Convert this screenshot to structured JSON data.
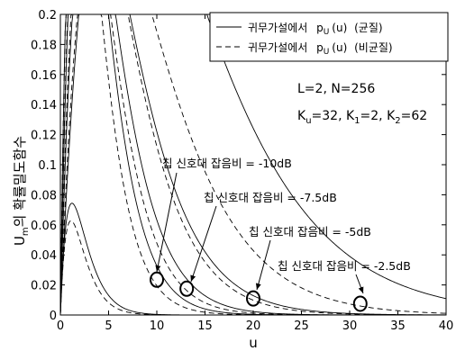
{
  "chart_data": {
    "type": "line",
    "xlabel": "u",
    "ylabel": "U_m의 확률밀도함수",
    "ylabel_parts": {
      "base": "U",
      "sub": "m",
      "rest": "의 확률밀도함수"
    },
    "xlim": [
      0,
      40
    ],
    "ylim": [
      0,
      0.2
    ],
    "x_ticks": [
      "0",
      "5",
      "10",
      "15",
      "20",
      "25",
      "30",
      "35",
      "40"
    ],
    "y_ticks": [
      "0",
      "0.02",
      "0.04",
      "0.06",
      "0.08",
      "0.1",
      "0.12",
      "0.14",
      "0.16",
      "0.18",
      "0.2"
    ],
    "grid": false,
    "legend": {
      "position": "top-right",
      "entries": [
        {
          "prefix": "귀무가설에서",
          "sym": "p",
          "sub": "U",
          "mid": "(u)",
          "suffix": "(균질)",
          "style": "solid"
        },
        {
          "prefix": "귀무가설에서",
          "sym": "p",
          "sub": "U",
          "mid": "(u)",
          "suffix": "(비균질)",
          "style": "dashed"
        }
      ]
    },
    "params": {
      "line1": "L=2, N=256",
      "line2": [
        {
          "t": "K",
          "s": "u"
        },
        {
          "t": "=32, K",
          "s": "1"
        },
        {
          "t": "=2, K",
          "s": "2"
        },
        {
          "t": "=62",
          "s": ""
        }
      ]
    },
    "annotations": [
      {
        "text": "칩 신호대 잡음비 = -10dB",
        "tx": 10.0,
        "ty": 0.0235
      },
      {
        "text": "칩 신호대 잡음비 = -7.5dB",
        "tx": 13.1,
        "ty": 0.0175
      },
      {
        "text": "칩 신호대 잡음비 = -5dB",
        "tx": 20.0,
        "ty": 0.011
      },
      {
        "text": "칩 신호대 잡음비 = -2.5dB",
        "tx": 31.1,
        "ty": 0.0075
      }
    ],
    "series": [
      {
        "style": "solid",
        "peak_x": 2.0,
        "peak_y": 0.179
      },
      {
        "style": "dashed",
        "peak_x": 1.8,
        "peak_y": 0.185
      },
      {
        "style": "solid",
        "peak_x": 2.5,
        "peak_y": 0.127
      },
      {
        "style": "dashed",
        "peak_x": 2.3,
        "peak_y": 0.136
      },
      {
        "style": "solid",
        "peak_x": 3.4,
        "peak_y": 0.085
      },
      {
        "style": "dashed",
        "peak_x": 3.2,
        "peak_y": 0.094
      },
      {
        "style": "solid",
        "peak_x": 6.4,
        "peak_y": 0.052
      },
      {
        "style": "dashed",
        "peak_x": 4.6,
        "peak_y": 0.061
      },
      {
        "style": "solid",
        "peak_x": 1.2,
        "peak_y": 0.062
      },
      {
        "style": "dashed",
        "peak_x": 1.1,
        "peak_y": 0.057
      }
    ]
  }
}
